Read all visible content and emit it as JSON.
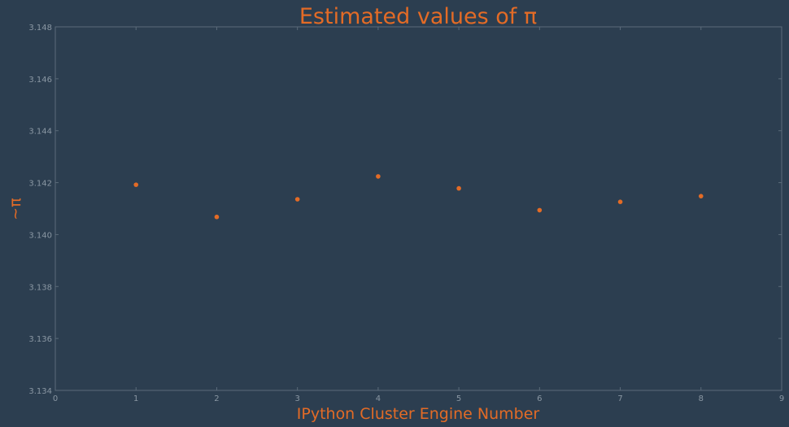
{
  "chart_data": {
    "type": "scatter",
    "title": "Estimated values of π",
    "xlabel": "IPython Cluster Engine Number",
    "ylabel": "~π",
    "xlim": [
      0,
      9
    ],
    "ylim": [
      3.134,
      3.148
    ],
    "xticks": [
      "0",
      "1",
      "2",
      "3",
      "4",
      "5",
      "6",
      "7",
      "8",
      "9"
    ],
    "yticks": [
      "3.134",
      "3.136",
      "3.138",
      "3.140",
      "3.142",
      "3.144",
      "3.146",
      "3.148"
    ],
    "x": [
      1,
      2,
      3,
      4,
      5,
      6,
      7,
      8
    ],
    "y": [
      3.14192,
      3.14068,
      3.14136,
      3.14224,
      3.14178,
      3.14094,
      3.14126,
      3.14148
    ],
    "grid": false,
    "colors": {
      "background": "#2c3e50",
      "marker": "#e36b26",
      "text_accent": "#e36b26",
      "tick_text": "#8a97a3",
      "frame": "#5b6b7a"
    }
  }
}
